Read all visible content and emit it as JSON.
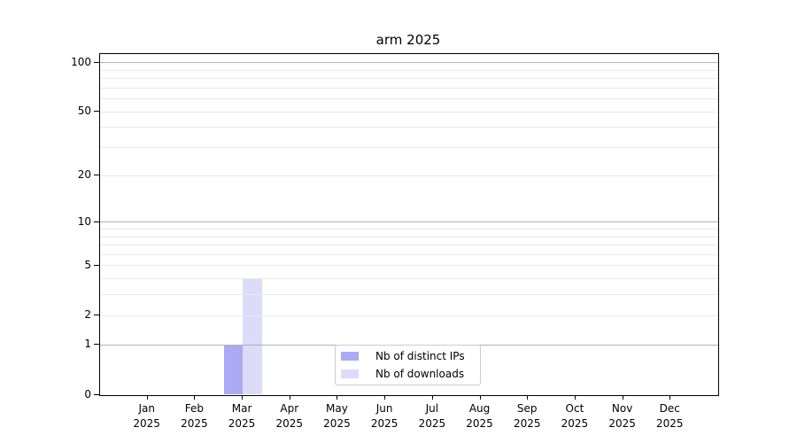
{
  "chart_data": {
    "type": "bar",
    "title": "arm 2025",
    "x_categories": [
      {
        "month": "Jan",
        "year": "2025"
      },
      {
        "month": "Feb",
        "year": "2025"
      },
      {
        "month": "Mar",
        "year": "2025"
      },
      {
        "month": "Apr",
        "year": "2025"
      },
      {
        "month": "May",
        "year": "2025"
      },
      {
        "month": "Jun",
        "year": "2025"
      },
      {
        "month": "Jul",
        "year": "2025"
      },
      {
        "month": "Aug",
        "year": "2025"
      },
      {
        "month": "Sep",
        "year": "2025"
      },
      {
        "month": "Oct",
        "year": "2025"
      },
      {
        "month": "Nov",
        "year": "2025"
      },
      {
        "month": "Dec",
        "year": "2025"
      }
    ],
    "series": [
      {
        "name": "Nb of distinct IPs",
        "color": "#aaaaf5",
        "values": [
          0,
          0,
          1,
          0,
          0,
          0,
          0,
          0,
          0,
          0,
          0,
          0
        ]
      },
      {
        "name": "Nb of downloads",
        "color": "#dcdcf8",
        "values": [
          0,
          0,
          4,
          0,
          0,
          0,
          0,
          0,
          0,
          0,
          0,
          0
        ]
      }
    ],
    "y_axis": {
      "scale": "log10(1+v)",
      "tick_values": [
        0,
        1,
        2,
        5,
        10,
        20,
        50,
        100
      ],
      "tick_labels": [
        "0",
        "1",
        "2",
        "5",
        "10",
        "20",
        "50",
        "100"
      ],
      "major_grid_values": [
        1,
        10,
        100
      ],
      "minor_grid_values": [
        2,
        3,
        4,
        5,
        6,
        7,
        8,
        9,
        20,
        30,
        40,
        50,
        60,
        70,
        80,
        90
      ],
      "ylim": [
        0,
        114
      ]
    },
    "legend": {
      "position": "lower center",
      "entries": [
        "Nb of distinct IPs",
        "Nb of downloads"
      ]
    },
    "colors": {
      "major_grid": "#b3b3b3",
      "minor_grid": "#e9e9e9",
      "spine": "#000000",
      "text": "#000000",
      "background": "#ffffff",
      "legend_border": "#cccccc"
    }
  }
}
